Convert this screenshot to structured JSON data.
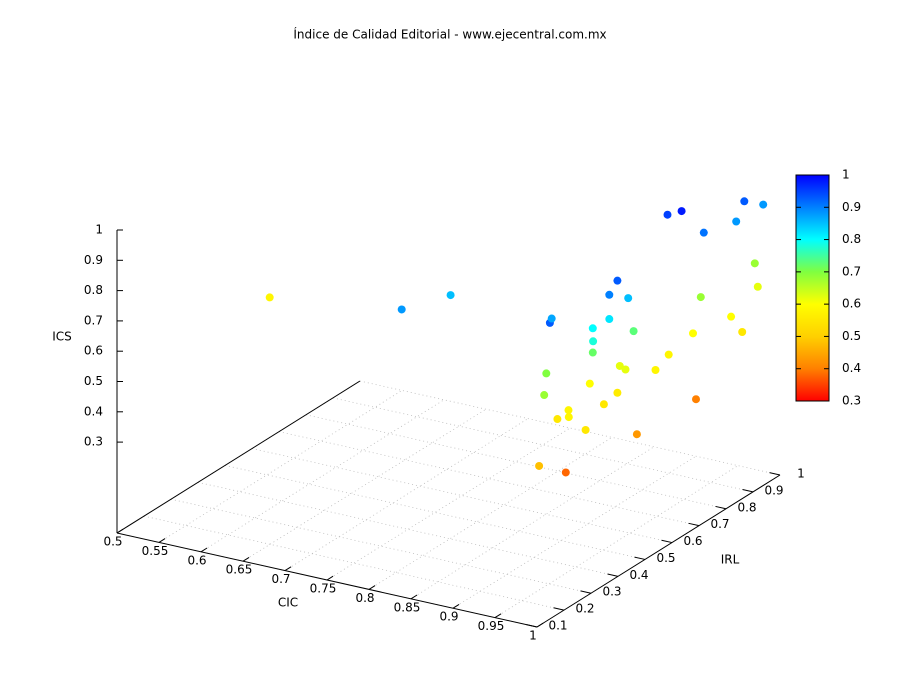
{
  "chart_data": {
    "type": "scatter3d",
    "title": "Índice de Calidad Editorial - www.ejecentral.com.mx",
    "xlabel": "CIC",
    "ylabel": "IRL",
    "zlabel": "ICS",
    "x": [
      0.55,
      0.81,
      0.82,
      0.98,
      0.95,
      0.94,
      0.96,
      0.98,
      0.98,
      0.98,
      0.98,
      0.98,
      0.98,
      0.98,
      0.98,
      0.97,
      0.98,
      0.98,
      0.97,
      0.95,
      0.97,
      0.97,
      0.97,
      0.98,
      0.99,
      1,
      0.98,
      0.98,
      0.99,
      0.97,
      0.98,
      0.96,
      0.98,
      0.98,
      0.97,
      0.98,
      0.96,
      1,
      1,
      0.99,
      0.98,
      0.97
    ],
    "y": [
      0.51,
      0.19,
      0.34,
      0.21,
      0.31,
      0.77,
      0.76,
      0.93,
      1,
      0.9,
      0.78,
      0.46,
      0.43,
      0.5,
      0.43,
      0.4,
      0.37,
      0.52,
      0.4,
      0.29,
      0.22,
      1,
      0.8,
      0.98,
      0.85,
      0.86,
      0.74,
      0.65,
      0.57,
      0.5,
      0.49,
      0.42,
      0.46,
      0.41,
      0.31,
      0.28,
      0.3,
      0.28,
      0.47,
      0.72,
      0.17,
      0.3
    ],
    "z": [
      0.58,
      0.88,
      0.85,
      0.93,
      0.87,
      0.95,
      0.98,
      0.93,
      0.88,
      0.88,
      0.91,
      0.93,
      0.9,
      0.85,
      0.82,
      0.8,
      0.78,
      0.73,
      0.72,
      0.7,
      0.68,
      0.68,
      0.68,
      0.62,
      0.6,
      0.55,
      0.6,
      0.58,
      0.58,
      0.62,
      0.62,
      0.6,
      0.56,
      0.55,
      0.58,
      0.58,
      0.55,
      0.55,
      0.43,
      0.4,
      0.48,
      0.38
    ],
    "xlim": [
      0.5,
      1
    ],
    "ylim": [
      0.1,
      1
    ],
    "zlim": [
      0,
      1
    ],
    "xticks": [
      0.5,
      0.55,
      0.6,
      0.65,
      0.7,
      0.75,
      0.8,
      0.85,
      0.9,
      0.95,
      1
    ],
    "yticks": [
      0.1,
      0.2,
      0.3,
      0.4,
      0.5,
      0.6,
      0.7,
      0.8,
      0.9,
      1
    ],
    "zticks": [
      0.3,
      0.4,
      0.5,
      0.6,
      0.7,
      0.8,
      0.9,
      1
    ],
    "cblim": [
      0.3,
      1
    ],
    "cbticks": [
      0.3,
      0.4,
      0.5,
      0.6,
      0.7,
      0.8,
      0.9,
      1
    ],
    "palette": [
      "#ff0000",
      "#ff8000",
      "#ffd000",
      "#ffff00",
      "#80ff40",
      "#00ffff",
      "#0080ff",
      "#0000ff"
    ],
    "grid": true
  }
}
